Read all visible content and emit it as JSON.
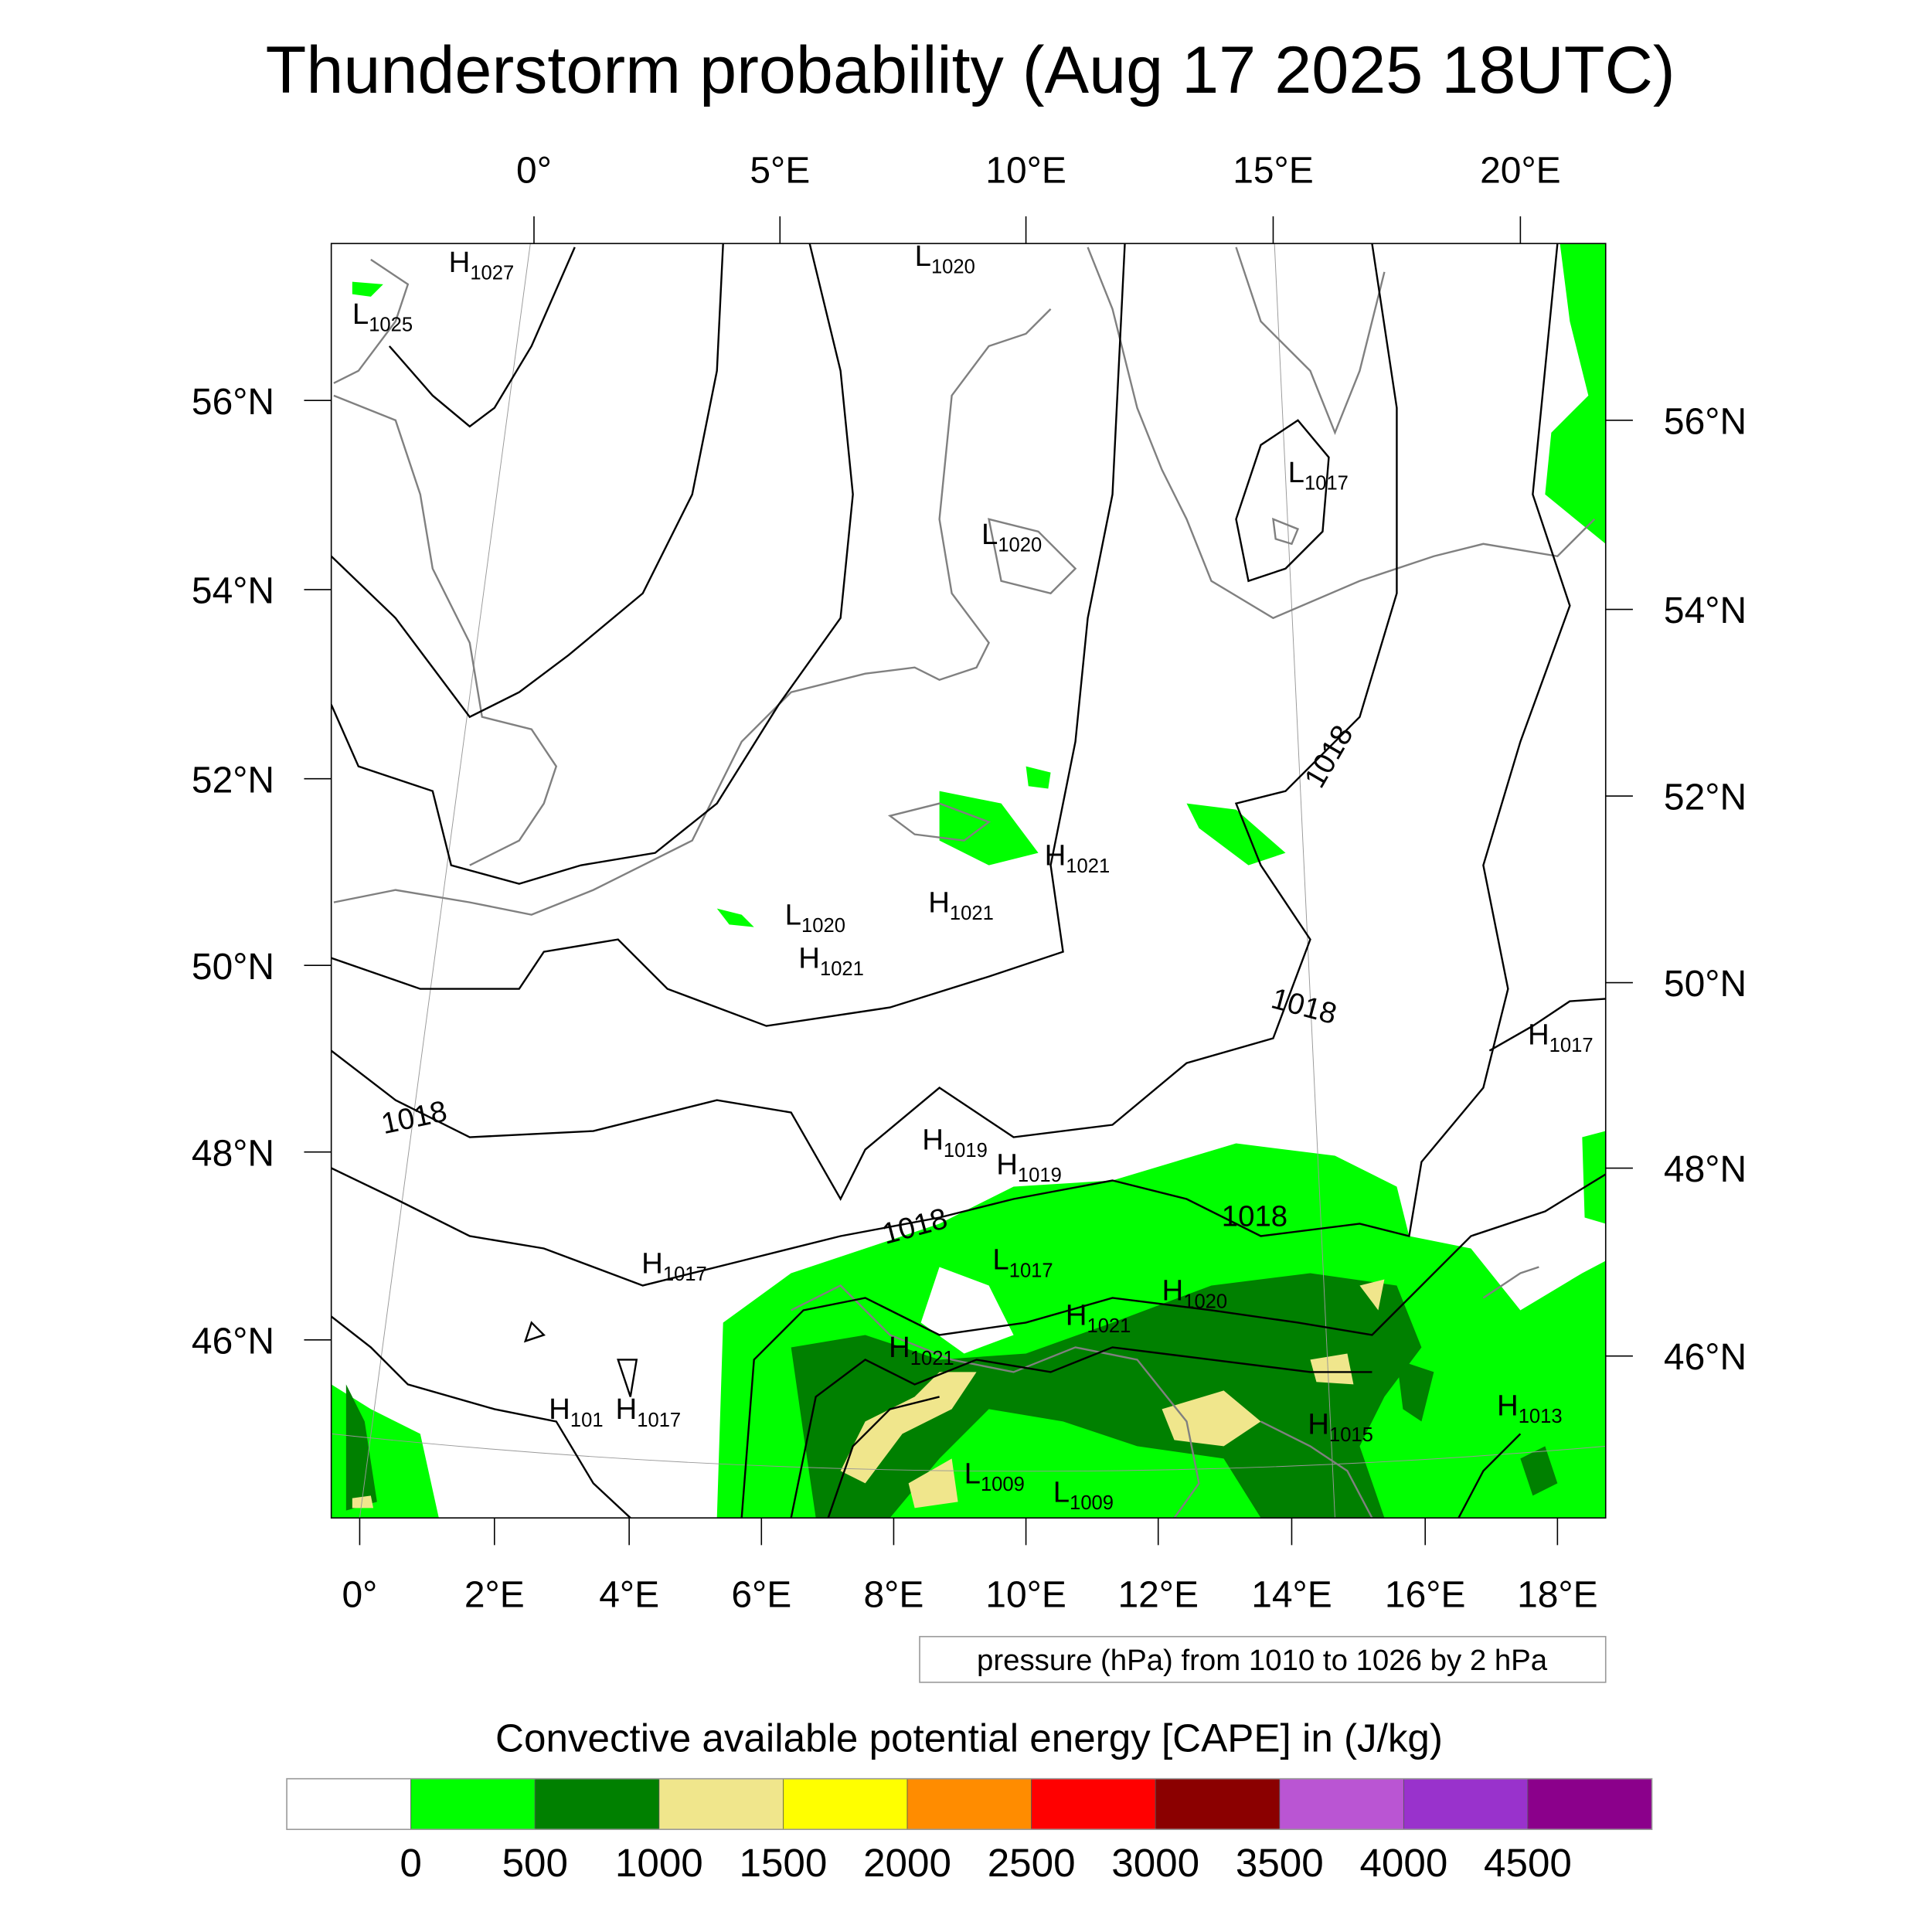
{
  "title": "Thunderstorm probability (Aug 17 2025 18UTC)",
  "top_lon_ticks": [
    "0°",
    "5°E",
    "10°E",
    "15°E",
    "20°E"
  ],
  "bottom_lon_ticks": [
    "0°",
    "2°E",
    "4°E",
    "6°E",
    "8°E",
    "10°E",
    "12°E",
    "14°E",
    "16°E",
    "18°E"
  ],
  "left_lat_ticks": [
    "56°N",
    "54°N",
    "52°N",
    "50°N",
    "48°N",
    "46°N"
  ],
  "right_lat_ticks": [
    "56°N",
    "54°N",
    "52°N",
    "50°N",
    "48°N",
    "46°N"
  ],
  "pressure_centers": [
    {
      "type": "H",
      "value": "1027"
    },
    {
      "type": "L",
      "value": "1025"
    },
    {
      "type": "L",
      "value": "1020"
    },
    {
      "type": "L",
      "value": "1020"
    },
    {
      "type": "L",
      "value": "1017"
    },
    {
      "type": "H",
      "value": "1021"
    },
    {
      "type": "H",
      "value": "1021"
    },
    {
      "type": "L",
      "value": "1020"
    },
    {
      "type": "H",
      "value": "1021"
    },
    {
      "type": "H",
      "value": "1017"
    },
    {
      "type": "H",
      "value": "1019"
    },
    {
      "type": "H",
      "value": "1019"
    },
    {
      "type": "L",
      "value": "1017"
    },
    {
      "type": "H",
      "value": "1020"
    },
    {
      "type": "H",
      "value": "1021"
    },
    {
      "type": "H",
      "value": "1017"
    },
    {
      "type": "H",
      "value": "1021"
    },
    {
      "type": "H",
      "value": "101"
    },
    {
      "type": "H",
      "value": "1017"
    },
    {
      "type": "H",
      "value": "1015"
    },
    {
      "type": "H",
      "value": "1013"
    },
    {
      "type": "L",
      "value": "1009"
    },
    {
      "type": "L",
      "value": "1009"
    }
  ],
  "contour_labels": [
    "1018",
    "1018",
    "1018",
    "1018",
    "1018"
  ],
  "contour_info": "pressure (hPa) from 1010 to 1026 by 2 hPa",
  "colorbar": {
    "title": "Convective available potential energy [CAPE] in (J/kg)",
    "colors": [
      "#ffffff",
      "#00ff00",
      "#008000",
      "#f0e68c",
      "#ffff00",
      "#ff8c00",
      "#ff0000",
      "#8b0000",
      "#ba55d3",
      "#9932cc",
      "#8b008b"
    ],
    "labels": [
      "0",
      "500",
      "1000",
      "1500",
      "2000",
      "2500",
      "3000",
      "3500",
      "4000",
      "4500"
    ]
  }
}
